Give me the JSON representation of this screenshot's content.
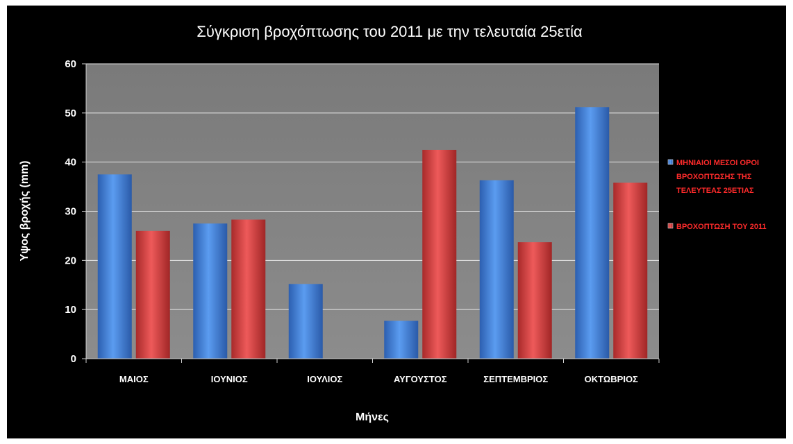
{
  "chart_data": {
    "type": "bar",
    "title": "Σύγκριση βροχόπτωσης του 2011 με την τελευταία 25ετία",
    "xlabel": "Μήνες",
    "ylabel": "Υψος βροχής (mm)",
    "ylim": [
      0,
      60
    ],
    "yticks": [
      0,
      10,
      20,
      30,
      40,
      50,
      60
    ],
    "grid": true,
    "legend_position": "right",
    "categories": [
      "ΜΑΙΟΣ",
      "ΙΟΥΝΙΟΣ",
      "ΙΟΥΛΙΟΣ",
      "ΑΥΓΟΥΣΤΟΣ",
      "ΣΕΠΤΕΜΒΡΙΟΣ",
      "ΟΚΤΩΒΡΙΟΣ"
    ],
    "series": [
      {
        "name": "ΜΗΝΙΑΙΟΙ ΜΕΣΟΙ ΟΡΟΙ ΒΡΟΧΟΠΤΩΣΗΣ ΤΗΣ ΤΕΛΕΥΤΕΑΣ 25ΕΤΙΑΣ",
        "name_lines": [
          "ΜΗΝΙΑΙΟΙ ΜΕΣΟΙ ΟΡΟΙ",
          "ΒΡΟΧΟΠΤΩΣΗΣ ΤΗΣ",
          "ΤΕΛΕΥΤΕΑΣ 25ΕΤΙΑΣ"
        ],
        "color": "#3a78d8",
        "values": [
          37.5,
          27.5,
          15.2,
          7.7,
          36.3,
          51.2
        ]
      },
      {
        "name": "ΒΡΟΧΟΠΤΩΣΗ ΤΟΥ 2011",
        "name_lines": [
          "ΒΡΟΧΟΠΤΩΣΗ ΤΟΥ 2011"
        ],
        "color": "#d83a3a",
        "values": [
          26.0,
          28.3,
          0,
          42.5,
          23.7,
          35.8
        ]
      }
    ]
  },
  "colors": {
    "background": "#000000",
    "plot_area": "#808080",
    "gridline": "#e6e6e6",
    "text": "#ffffff",
    "legend_text": "#ff2b2b"
  }
}
